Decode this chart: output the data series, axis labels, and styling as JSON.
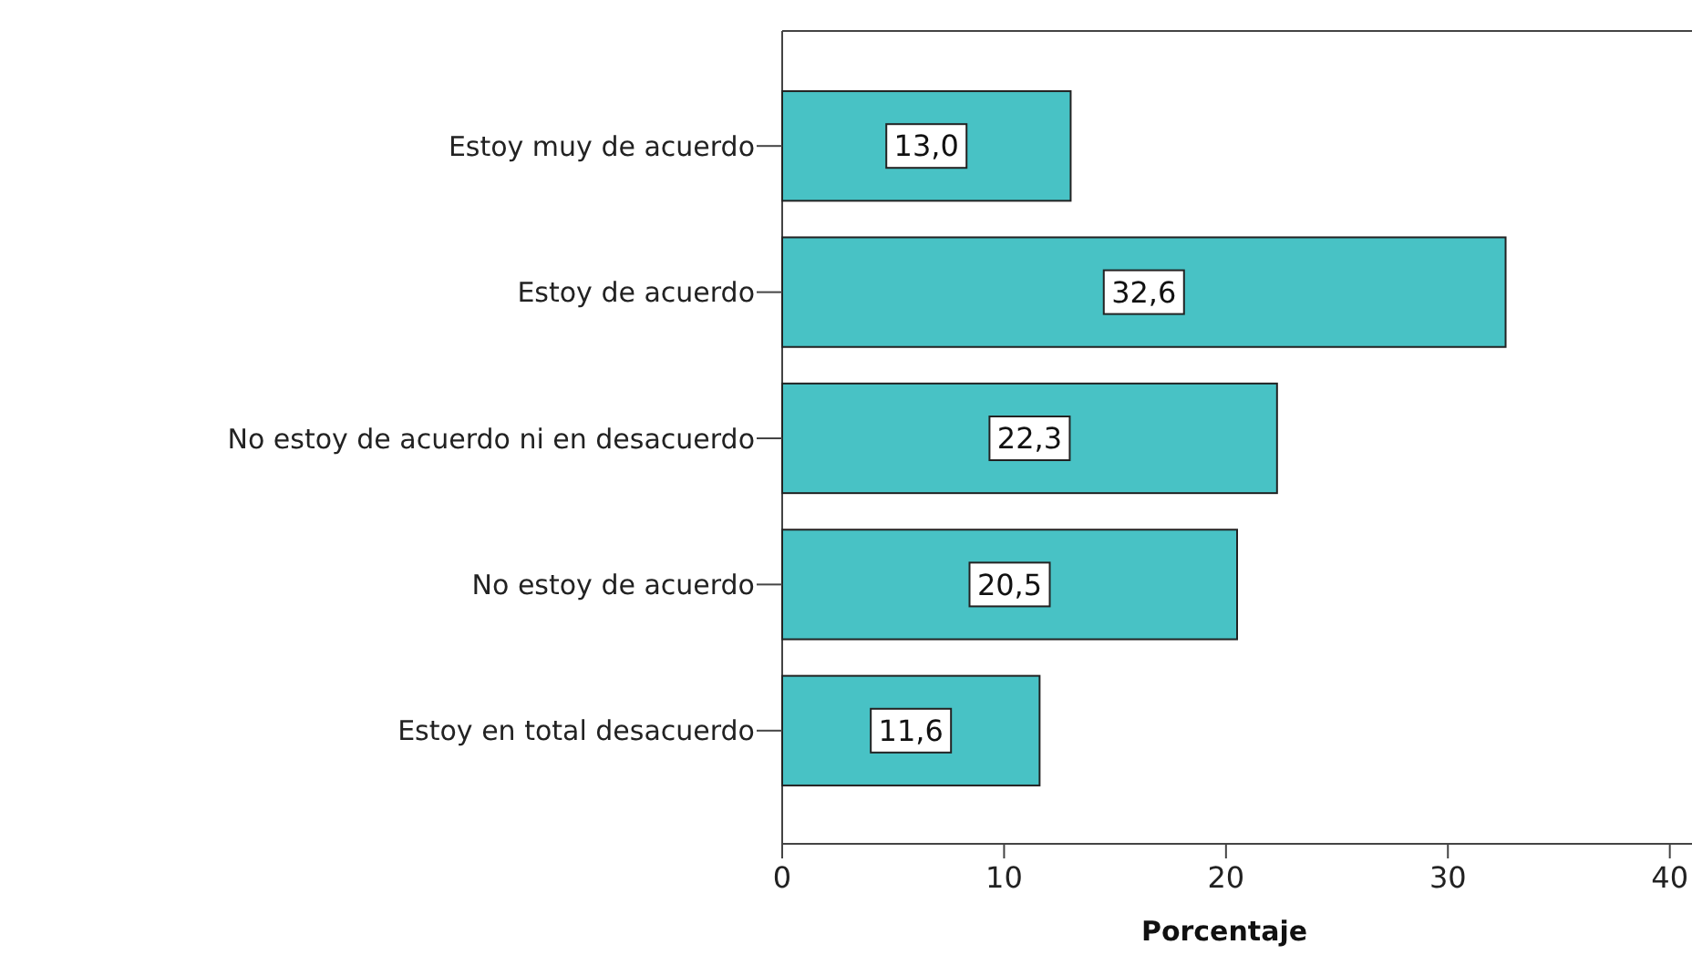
{
  "chart_data": {
    "type": "bar",
    "orientation": "horizontal",
    "xlabel": "Porcentaje",
    "categories": [
      "Estoy muy de acuerdo",
      "Estoy de acuerdo",
      "No estoy de acuerdo ni en desacuerdo",
      "No estoy de acuerdo",
      "Estoy en total desacuerdo"
    ],
    "values": [
      13.0,
      32.6,
      22.3,
      20.5,
      11.6
    ],
    "value_labels": [
      "13,0",
      "32,6",
      "22,3",
      "20,5",
      "11,6"
    ],
    "color": "#48c2c5",
    "xlim": [
      0,
      41
    ],
    "xticks": [
      0,
      10,
      20,
      30,
      40
    ],
    "grid": false
  }
}
